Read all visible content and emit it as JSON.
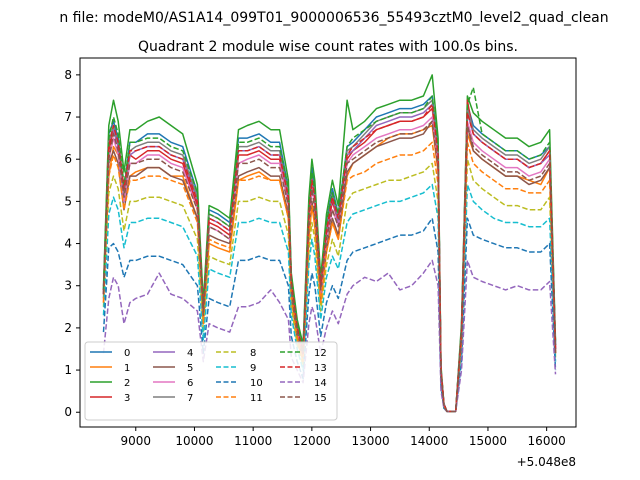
{
  "figure": {
    "suptitle": "n file: modeM0/AS1A14_099T01_9000006536_55493cztM0_level2_quad_clean",
    "title": "Quadrant 2 module wise count rates with 100.0s bins.",
    "x_offset_label": "+5.048e8"
  },
  "chart_data": {
    "type": "line",
    "title": "Quadrant 2 module wise count rates with 100.0s bins.",
    "xlim": [
      8050,
      16500
    ],
    "ylim": [
      -0.35,
      8.4
    ],
    "x_offset": 504800000,
    "xticks": [
      9000,
      10000,
      11000,
      12000,
      13000,
      14000,
      15000,
      16000
    ],
    "xtick_labels": [
      "9000",
      "10000",
      "11000",
      "12000",
      "13000",
      "14000",
      "15000",
      "16000"
    ],
    "yticks": [
      0,
      1,
      2,
      3,
      4,
      5,
      6,
      7,
      8
    ],
    "ytick_labels": [
      "0",
      "1",
      "2",
      "3",
      "4",
      "5",
      "6",
      "7",
      "8"
    ],
    "grid": false,
    "legend_position": "lower-left",
    "legend_columns": 4,
    "x_knots": [
      8450,
      8540,
      8620,
      8700,
      8800,
      8900,
      9000,
      9200,
      9400,
      9600,
      9800,
      10050,
      10150,
      10250,
      10400,
      10600,
      10750,
      10900,
      11100,
      11300,
      11450,
      11600,
      11650,
      11750,
      11850,
      11950,
      12000,
      12050,
      12150,
      12250,
      12350,
      12450,
      12600,
      12700,
      12900,
      13100,
      13300,
      13500,
      13700,
      13900,
      14050,
      14150,
      14200,
      14250,
      14300,
      14350,
      14450,
      14550,
      14650,
      14750,
      14900,
      15100,
      15300,
      15500,
      15700,
      15900,
      16050,
      16150
    ],
    "series": [
      {
        "name": "0",
        "color": "#1f77b4",
        "dashed": false,
        "values": [
          2.9,
          6.6,
          6.9,
          6.5,
          5.3,
          6.4,
          6.4,
          6.6,
          6.6,
          6.4,
          6.3,
          5.2,
          2.5,
          4.8,
          4.7,
          4.5,
          6.5,
          6.5,
          6.6,
          6.4,
          6.4,
          5.3,
          3.2,
          2.1,
          1.5,
          4.9,
          5.8,
          5.3,
          3.1,
          4.5,
          5.3,
          4.7,
          6.3,
          6.4,
          6.7,
          7.0,
          7.1,
          7.2,
          7.2,
          7.3,
          7.5,
          6.3,
          1.0,
          0.2,
          0.02,
          0.02,
          0.02,
          2.0,
          7.3,
          6.8,
          6.6,
          6.4,
          6.2,
          6.2,
          6.0,
          6.1,
          6.3,
          1.6
        ]
      },
      {
        "name": "1",
        "color": "#ff7f0e",
        "dashed": false,
        "values": [
          2.6,
          5.6,
          6.3,
          6.1,
          5.0,
          5.6,
          5.7,
          5.8,
          5.8,
          5.6,
          5.6,
          4.6,
          2.1,
          4.0,
          3.9,
          3.8,
          5.5,
          5.6,
          5.7,
          5.5,
          5.5,
          4.6,
          2.7,
          1.7,
          1.2,
          4.1,
          4.9,
          4.4,
          2.6,
          3.8,
          4.5,
          4.1,
          5.6,
          5.9,
          6.1,
          6.3,
          6.5,
          6.6,
          6.6,
          6.7,
          6.8,
          5.7,
          0.9,
          0.15,
          0.02,
          0.02,
          0.02,
          1.8,
          6.6,
          6.2,
          6.0,
          5.8,
          5.6,
          5.6,
          5.5,
          5.4,
          5.8,
          1.4
        ]
      },
      {
        "name": "2",
        "color": "#2ca02c",
        "dashed": false,
        "values": [
          3.0,
          6.8,
          7.4,
          6.9,
          5.7,
          6.7,
          6.7,
          6.9,
          7.0,
          6.8,
          6.6,
          5.4,
          2.6,
          4.9,
          4.8,
          4.6,
          6.7,
          6.8,
          6.9,
          6.7,
          6.7,
          5.5,
          3.3,
          2.2,
          1.6,
          5.1,
          6.0,
          5.5,
          3.2,
          4.7,
          5.5,
          4.9,
          7.4,
          6.7,
          6.9,
          7.2,
          7.3,
          7.4,
          7.4,
          7.5,
          8.0,
          6.5,
          1.1,
          0.2,
          0.02,
          0.02,
          0.02,
          2.1,
          7.5,
          7.1,
          6.9,
          6.7,
          6.5,
          6.5,
          6.3,
          6.4,
          6.7,
          1.7
        ]
      },
      {
        "name": "3",
        "color": "#d62728",
        "dashed": false,
        "values": [
          2.8,
          6.2,
          6.7,
          6.3,
          5.2,
          6.1,
          6.0,
          6.2,
          6.2,
          6.0,
          5.9,
          4.9,
          2.3,
          4.5,
          4.4,
          4.2,
          6.1,
          6.1,
          6.2,
          6.0,
          6.0,
          5.0,
          3.0,
          2.0,
          1.4,
          4.6,
          5.4,
          5.0,
          2.9,
          4.2,
          5.0,
          4.5,
          6.0,
          6.2,
          6.4,
          6.7,
          6.8,
          6.9,
          6.9,
          7.0,
          7.2,
          6.1,
          1.0,
          0.2,
          0.02,
          0.02,
          0.02,
          1.9,
          7.4,
          6.6,
          6.4,
          6.2,
          6.0,
          6.0,
          5.8,
          5.9,
          6.2,
          1.5
        ]
      },
      {
        "name": "4",
        "color": "#9467bd",
        "dashed": false,
        "values": [
          2.8,
          6.4,
          6.7,
          6.3,
          5.1,
          6.1,
          6.2,
          6.3,
          6.3,
          6.1,
          6.0,
          5.0,
          2.4,
          4.6,
          4.5,
          4.3,
          6.2,
          6.2,
          6.3,
          6.1,
          6.1,
          5.1,
          3.1,
          2.0,
          1.4,
          4.7,
          5.5,
          5.1,
          3.0,
          4.3,
          5.1,
          4.5,
          6.1,
          6.2,
          6.5,
          6.8,
          6.9,
          7.0,
          7.0,
          7.1,
          7.3,
          6.2,
          1.0,
          0.2,
          0.02,
          0.02,
          0.02,
          1.9,
          7.1,
          6.6,
          6.4,
          6.2,
          6.0,
          6.0,
          5.8,
          5.9,
          6.1,
          1.5
        ]
      },
      {
        "name": "5",
        "color": "#8c564b",
        "dashed": false,
        "values": [
          2.7,
          5.9,
          6.2,
          5.9,
          4.8,
          5.6,
          5.6,
          5.8,
          5.8,
          5.6,
          5.5,
          4.6,
          2.2,
          4.2,
          4.1,
          4.0,
          5.6,
          5.7,
          5.8,
          5.6,
          5.6,
          4.7,
          2.8,
          1.8,
          1.3,
          4.3,
          5.0,
          4.6,
          2.7,
          3.9,
          4.6,
          4.2,
          5.7,
          5.9,
          6.1,
          6.3,
          6.4,
          6.5,
          6.5,
          6.6,
          6.9,
          5.8,
          0.9,
          0.15,
          0.02,
          0.02,
          0.02,
          1.8,
          6.8,
          6.2,
          6.0,
          5.8,
          5.6,
          5.6,
          5.4,
          5.5,
          5.8,
          1.4
        ]
      },
      {
        "name": "6",
        "color": "#e377c2",
        "dashed": false,
        "values": [
          2.8,
          6.0,
          6.5,
          6.1,
          5.0,
          5.9,
          5.9,
          6.1,
          6.1,
          5.9,
          5.8,
          4.8,
          2.3,
          4.4,
          4.3,
          4.1,
          5.9,
          6.0,
          6.1,
          5.9,
          5.9,
          4.9,
          2.9,
          1.9,
          1.4,
          4.5,
          5.3,
          4.9,
          2.8,
          4.1,
          4.8,
          4.4,
          5.9,
          6.1,
          6.3,
          6.5,
          6.6,
          6.7,
          6.7,
          6.8,
          7.0,
          5.9,
          0.9,
          0.15,
          0.02,
          0.02,
          0.02,
          1.8,
          6.9,
          6.4,
          6.2,
          6.0,
          5.8,
          5.8,
          5.6,
          5.7,
          6.0,
          1.5
        ]
      },
      {
        "name": "7",
        "color": "#7f7f7f",
        "dashed": false,
        "values": [
          2.9,
          6.4,
          6.8,
          6.4,
          5.2,
          6.2,
          6.3,
          6.4,
          6.4,
          6.2,
          6.1,
          5.1,
          2.4,
          4.7,
          4.6,
          4.4,
          6.3,
          6.3,
          6.4,
          6.2,
          6.2,
          5.2,
          3.1,
          2.0,
          1.5,
          4.8,
          5.6,
          5.2,
          3.0,
          4.4,
          5.2,
          4.6,
          6.2,
          6.3,
          6.6,
          6.9,
          7.0,
          7.1,
          7.1,
          7.2,
          7.4,
          6.2,
          1.0,
          0.2,
          0.02,
          0.02,
          0.02,
          2.0,
          7.2,
          6.7,
          6.5,
          6.3,
          6.1,
          6.1,
          5.9,
          6.0,
          6.3,
          1.6
        ]
      },
      {
        "name": "8",
        "color": "#bcbd22",
        "dashed": true,
        "values": [
          2.5,
          5.2,
          5.6,
          5.3,
          4.3,
          5.0,
          5.0,
          5.1,
          5.1,
          5.0,
          4.9,
          4.1,
          1.9,
          3.7,
          3.6,
          3.5,
          5.0,
          5.0,
          5.1,
          5.0,
          5.0,
          4.2,
          2.5,
          1.6,
          1.1,
          3.8,
          4.5,
          4.1,
          2.4,
          3.5,
          4.1,
          3.7,
          5.0,
          5.2,
          5.3,
          5.4,
          5.5,
          5.5,
          5.6,
          5.7,
          5.9,
          5.0,
          0.8,
          0.1,
          0.02,
          0.02,
          0.02,
          1.6,
          6.0,
          5.5,
          5.3,
          5.1,
          4.9,
          4.9,
          4.8,
          4.8,
          5.1,
          1.3
        ]
      },
      {
        "name": "9",
        "color": "#17becf",
        "dashed": true,
        "values": [
          2.3,
          4.7,
          5.1,
          4.8,
          3.9,
          4.5,
          4.5,
          4.6,
          4.6,
          4.5,
          4.4,
          3.7,
          1.7,
          3.4,
          3.3,
          3.2,
          4.5,
          4.5,
          4.6,
          4.5,
          4.5,
          3.8,
          2.3,
          1.5,
          1.0,
          3.5,
          4.1,
          3.7,
          2.2,
          3.2,
          3.7,
          3.4,
          4.5,
          4.7,
          4.8,
          4.9,
          5.0,
          5.0,
          5.1,
          5.2,
          5.4,
          4.6,
          0.7,
          0.1,
          0.02,
          0.02,
          0.02,
          1.5,
          5.4,
          5.0,
          4.8,
          4.6,
          4.5,
          4.5,
          4.4,
          4.4,
          4.6,
          1.2
        ]
      },
      {
        "name": "10",
        "color": "#1f77b4",
        "dashed": true,
        "values": [
          1.9,
          3.9,
          4.0,
          3.8,
          3.2,
          3.6,
          3.6,
          3.7,
          3.7,
          3.6,
          3.5,
          3.0,
          1.4,
          2.7,
          2.6,
          2.5,
          3.6,
          3.6,
          3.7,
          3.6,
          3.6,
          3.0,
          1.8,
          1.2,
          0.8,
          2.8,
          3.3,
          3.0,
          1.8,
          2.6,
          3.0,
          2.7,
          3.6,
          3.8,
          3.9,
          4.0,
          4.1,
          4.2,
          4.2,
          4.3,
          4.6,
          3.8,
          0.6,
          0.1,
          0.02,
          0.02,
          0.02,
          1.2,
          4.6,
          4.2,
          4.1,
          4.0,
          3.9,
          3.9,
          3.8,
          3.8,
          4.0,
          1.0
        ]
      },
      {
        "name": "11",
        "color": "#ff7f0e",
        "dashed": true,
        "values": [
          2.6,
          5.6,
          6.1,
          5.8,
          4.8,
          5.5,
          5.5,
          5.6,
          5.6,
          5.5,
          5.4,
          4.5,
          2.1,
          4.1,
          4.0,
          3.9,
          5.5,
          5.5,
          5.6,
          5.5,
          5.5,
          4.6,
          2.8,
          1.8,
          1.2,
          4.2,
          4.9,
          4.5,
          2.6,
          3.8,
          4.5,
          4.1,
          5.5,
          5.6,
          5.7,
          5.9,
          6.0,
          6.1,
          6.1,
          6.2,
          6.4,
          5.4,
          0.9,
          0.15,
          0.02,
          0.02,
          0.02,
          1.7,
          6.4,
          5.9,
          5.7,
          5.5,
          5.3,
          5.3,
          5.2,
          5.2,
          5.5,
          1.4
        ]
      },
      {
        "name": "12",
        "color": "#2ca02c",
        "dashed": true,
        "values": [
          2.9,
          6.5,
          7.0,
          6.6,
          5.4,
          6.4,
          6.4,
          6.5,
          6.5,
          6.3,
          6.2,
          5.2,
          2.5,
          4.7,
          4.6,
          4.4,
          6.4,
          6.4,
          6.5,
          6.3,
          6.3,
          5.3,
          3.2,
          2.1,
          1.5,
          4.9,
          5.7,
          5.2,
          3.1,
          4.5,
          5.2,
          4.7,
          6.3,
          6.5,
          6.7,
          6.9,
          7.0,
          7.1,
          7.1,
          7.2,
          7.5,
          6.3,
          1.0,
          0.2,
          0.02,
          0.02,
          0.02,
          2.0,
          7.3,
          7.7,
          6.6,
          6.4,
          6.2,
          6.2,
          6.0,
          6.1,
          6.4,
          1.6
        ]
      },
      {
        "name": "13",
        "color": "#d62728",
        "dashed": true,
        "values": [
          2.8,
          6.3,
          6.8,
          6.4,
          5.3,
          6.2,
          6.2,
          6.3,
          6.3,
          6.1,
          6.0,
          5.0,
          2.4,
          4.6,
          4.5,
          4.3,
          6.2,
          6.2,
          6.3,
          6.1,
          6.1,
          5.1,
          3.1,
          2.0,
          1.4,
          4.7,
          5.5,
          5.1,
          3.0,
          4.3,
          5.1,
          4.6,
          6.1,
          6.3,
          6.5,
          6.7,
          6.8,
          6.9,
          6.9,
          7.0,
          7.3,
          6.1,
          1.0,
          0.2,
          0.02,
          0.02,
          0.02,
          1.9,
          7.1,
          6.6,
          6.4,
          6.2,
          6.0,
          6.0,
          5.8,
          5.9,
          6.2,
          1.5
        ]
      },
      {
        "name": "14",
        "color": "#9467bd",
        "dashed": true,
        "values": [
          1.4,
          2.7,
          3.2,
          3.0,
          2.1,
          2.6,
          2.7,
          2.8,
          3.3,
          2.8,
          2.7,
          2.4,
          1.2,
          2.1,
          2.0,
          1.9,
          2.5,
          2.5,
          2.6,
          2.9,
          2.6,
          2.2,
          1.3,
          1.0,
          0.7,
          2.1,
          2.5,
          2.3,
          1.4,
          2.0,
          2.4,
          2.1,
          2.8,
          3.0,
          3.2,
          3.1,
          3.3,
          2.9,
          3.0,
          3.3,
          3.6,
          3.0,
          0.5,
          0.1,
          0.02,
          0.02,
          0.02,
          1.0,
          3.6,
          3.2,
          3.1,
          3.0,
          2.9,
          3.0,
          2.9,
          2.9,
          3.1,
          0.9
        ]
      },
      {
        "name": "15",
        "color": "#8c564b",
        "dashed": true,
        "values": [
          2.8,
          6.0,
          6.6,
          6.2,
          5.1,
          5.9,
          5.9,
          6.0,
          6.0,
          5.8,
          5.7,
          4.8,
          2.3,
          4.4,
          4.3,
          4.1,
          5.9,
          5.9,
          6.0,
          5.8,
          5.8,
          4.9,
          2.9,
          1.9,
          1.4,
          4.5,
          5.3,
          4.8,
          2.9,
          4.1,
          4.8,
          4.4,
          5.9,
          6.0,
          6.2,
          6.4,
          6.5,
          6.6,
          6.6,
          6.7,
          6.9,
          5.8,
          0.9,
          0.15,
          0.02,
          0.02,
          0.02,
          1.8,
          6.8,
          6.3,
          6.1,
          5.9,
          5.7,
          5.7,
          5.5,
          5.6,
          5.9,
          1.4
        ]
      }
    ]
  }
}
